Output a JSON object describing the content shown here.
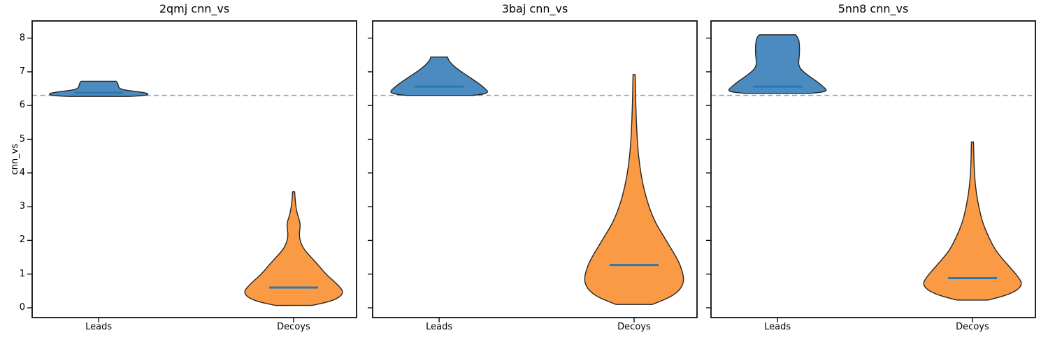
{
  "figure": {
    "ylabel": "cnn_vs",
    "yticks": [
      0,
      1,
      2,
      3,
      4,
      5,
      6,
      7,
      8
    ],
    "ylim": [
      -0.29,
      8.51
    ],
    "categories": [
      "Leads",
      "Decoys"
    ],
    "reference_line": {
      "value": 6.3,
      "style": "dashed",
      "color": "#6fabdc"
    },
    "colors": {
      "leads_fill": "#4c8bbf",
      "decoys_fill": "#fb9a44",
      "edge": "#262626",
      "median_line": "#2878b4",
      "spine": "#000000"
    }
  },
  "chart_data": [
    {
      "type": "violin",
      "title": "2qmj cnn_vs",
      "ylabel": "cnn_vs",
      "categories": [
        "Leads",
        "Decoys"
      ],
      "hline": 6.3,
      "series": [
        {
          "name": "Leads",
          "color": "#4c8bbf",
          "median": 6.38,
          "min": 6.27,
          "max": 6.72,
          "profile": [
            [
              6.72,
              25
            ],
            [
              6.66,
              27.5
            ],
            [
              6.58,
              28
            ],
            [
              6.5,
              30
            ],
            [
              6.45,
              40
            ],
            [
              6.41,
              57
            ],
            [
              6.37,
              69
            ],
            [
              6.33,
              71
            ],
            [
              6.3,
              66
            ],
            [
              6.28,
              55
            ],
            [
              6.27,
              42
            ]
          ]
        },
        {
          "name": "Decoys",
          "color": "#fb9a44",
          "median": 0.6,
          "min": 0.07,
          "max": 3.44,
          "profile": [
            [
              3.44,
              1.5
            ],
            [
              3.1,
              2.5
            ],
            [
              2.8,
              5
            ],
            [
              2.55,
              9
            ],
            [
              2.4,
              9.5
            ],
            [
              2.2,
              8
            ],
            [
              2.0,
              9
            ],
            [
              1.75,
              14
            ],
            [
              1.5,
              25
            ],
            [
              1.25,
              36
            ],
            [
              1.0,
              46
            ],
            [
              0.8,
              57
            ],
            [
              0.62,
              66
            ],
            [
              0.48,
              71
            ],
            [
              0.33,
              67
            ],
            [
              0.2,
              54
            ],
            [
              0.1,
              33
            ],
            [
              0.07,
              26
            ]
          ]
        }
      ]
    },
    {
      "type": "violin",
      "title": "3baj cnn_vs",
      "ylabel": "cnn_vs",
      "categories": [
        "Leads",
        "Decoys"
      ],
      "hline": 6.3,
      "series": [
        {
          "name": "Leads",
          "color": "#4c8bbf",
          "median": 6.56,
          "min": 6.3,
          "max": 7.44,
          "profile": [
            [
              7.44,
              12
            ],
            [
              7.36,
              13
            ],
            [
              7.25,
              17
            ],
            [
              7.05,
              28
            ],
            [
              6.85,
              43
            ],
            [
              6.65,
              57
            ],
            [
              6.5,
              66
            ],
            [
              6.4,
              70.5
            ],
            [
              6.34,
              64
            ],
            [
              6.31,
              52
            ],
            [
              6.3,
              47
            ]
          ]
        },
        {
          "name": "Decoys",
          "color": "#fb9a44",
          "median": 1.27,
          "min": 0.1,
          "max": 6.92,
          "profile": [
            [
              6.92,
              1.5
            ],
            [
              6.4,
              2
            ],
            [
              5.6,
              3
            ],
            [
              4.8,
              5
            ],
            [
              4.2,
              8
            ],
            [
              3.6,
              13
            ],
            [
              3.0,
              21
            ],
            [
              2.5,
              31
            ],
            [
              2.1,
              43
            ],
            [
              1.75,
              53
            ],
            [
              1.45,
              62
            ],
            [
              1.15,
              68
            ],
            [
              0.9,
              71
            ],
            [
              0.7,
              70
            ],
            [
              0.5,
              64
            ],
            [
              0.32,
              52
            ],
            [
              0.18,
              36
            ],
            [
              0.1,
              26
            ]
          ]
        }
      ]
    },
    {
      "type": "violin",
      "title": "5nn8 cnn_vs",
      "ylabel": "cnn_vs",
      "categories": [
        "Leads",
        "Decoys"
      ],
      "hline": 6.3,
      "series": [
        {
          "name": "Leads",
          "color": "#4c8bbf",
          "median": 6.56,
          "min": 6.36,
          "max": 8.1,
          "profile": [
            [
              8.1,
              26
            ],
            [
              8.0,
              30
            ],
            [
              7.8,
              31.5
            ],
            [
              7.55,
              31.5
            ],
            [
              7.35,
              30.5
            ],
            [
              7.22,
              30
            ],
            [
              7.08,
              33
            ],
            [
              6.9,
              43
            ],
            [
              6.72,
              56
            ],
            [
              6.55,
              66
            ],
            [
              6.45,
              71
            ],
            [
              6.4,
              65
            ],
            [
              6.37,
              52
            ],
            [
              6.36,
              46
            ]
          ]
        },
        {
          "name": "Decoys",
          "color": "#fb9a44",
          "median": 0.88,
          "min": 0.23,
          "max": 4.92,
          "profile": [
            [
              4.92,
              1.5
            ],
            [
              4.4,
              2
            ],
            [
              3.9,
              3
            ],
            [
              3.4,
              5.5
            ],
            [
              3.0,
              9
            ],
            [
              2.55,
              14
            ],
            [
              2.1,
              23
            ],
            [
              1.7,
              33
            ],
            [
              1.4,
              45
            ],
            [
              1.1,
              58
            ],
            [
              0.9,
              66
            ],
            [
              0.72,
              71
            ],
            [
              0.55,
              66
            ],
            [
              0.4,
              52
            ],
            [
              0.3,
              36
            ],
            [
              0.25,
              26
            ],
            [
              0.23,
              22
            ]
          ]
        }
      ]
    }
  ]
}
